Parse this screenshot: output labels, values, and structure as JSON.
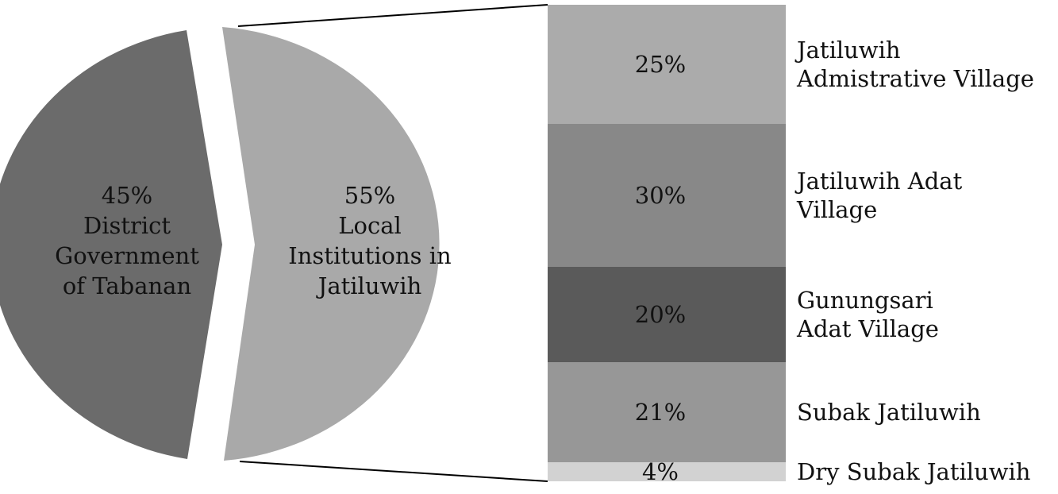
{
  "chart_data": [
    {
      "type": "pie",
      "title": "",
      "slices": [
        {
          "label": "District Government of Tabanan",
          "value": 45,
          "value_label": "45%",
          "label_lines": [
            "45%",
            "District",
            "Government",
            "of Tabanan"
          ],
          "color": "#6b6b6b"
        },
        {
          "label": "Local Institutions in Jatiluwih",
          "value": 55,
          "value_label": "55%",
          "label_lines": [
            "55%",
            "Local",
            "Institutions in",
            "Jatiluwih"
          ],
          "color": "#a9a9a9"
        }
      ],
      "exploded_slice": "Local Institutions in Jatiluwih"
    },
    {
      "type": "bar",
      "subtype": "stacked-100",
      "title": "",
      "breakdown_of": "Local Institutions in Jatiluwih",
      "categories": [
        "Jatiluwih Admistrative Village",
        "Jatiluwih Adat Village",
        "Gunungsari Adat Village",
        "Subak Jatiluwih",
        "Dry Subak Jatiluwih"
      ],
      "values": [
        25,
        30,
        20,
        21,
        4
      ],
      "value_labels": [
        "25%",
        "30%",
        "20%",
        "21%",
        "4%"
      ],
      "category_lines": [
        [
          "Jatiluwih",
          "Admistrative Village"
        ],
        [
          "Jatiluwih Adat",
          "Village"
        ],
        [
          "Gunungsari",
          "Adat Village"
        ],
        [
          "Subak Jatiluwih"
        ],
        [
          "Dry Subak Jatiluwih"
        ]
      ],
      "colors": [
        "#ababab",
        "#888888",
        "#5a5a5a",
        "#979797",
        "#d2d2d2"
      ]
    }
  ]
}
